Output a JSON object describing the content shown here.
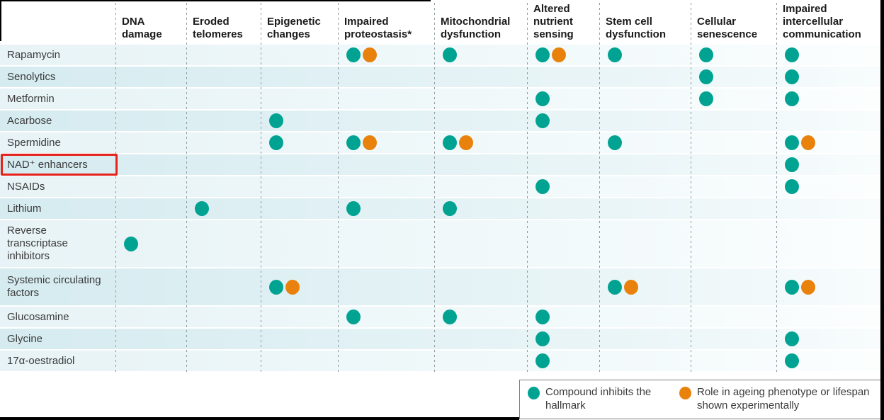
{
  "colors": {
    "teal": "#00A392",
    "orange": "#E8820C",
    "highlight_red": "#E5231B",
    "row_tint_light": "#E7F3F6",
    "row_tint_dark": "#D5EBF0"
  },
  "chart_data": {
    "type": "table",
    "title": "",
    "columns": [
      "DNA damage",
      "Eroded telomeres",
      "Epigenetic changes",
      "Impaired proteostasis*",
      "Mitochondrial dysfunction",
      "Altered nutrient sensing",
      "Stem cell dysfunction",
      "Cellular senescence",
      "Impaired intercellular communication"
    ],
    "rows": [
      {
        "label": "Rapamycin",
        "highlighted": false,
        "cells": [
          [],
          [],
          [],
          [
            "inhibits",
            "experimental"
          ],
          [
            "inhibits"
          ],
          [
            "inhibits",
            "experimental"
          ],
          [
            "inhibits"
          ],
          [
            "inhibits"
          ],
          [
            "inhibits"
          ]
        ]
      },
      {
        "label": "Senolytics",
        "highlighted": false,
        "cells": [
          [],
          [],
          [],
          [],
          [],
          [],
          [],
          [
            "inhibits"
          ],
          [
            "inhibits"
          ]
        ]
      },
      {
        "label": "Metformin",
        "highlighted": false,
        "cells": [
          [],
          [],
          [],
          [],
          [],
          [
            "inhibits"
          ],
          [],
          [
            "inhibits"
          ],
          [
            "inhibits"
          ]
        ]
      },
      {
        "label": "Acarbose",
        "highlighted": false,
        "cells": [
          [],
          [],
          [
            "inhibits"
          ],
          [],
          [],
          [
            "inhibits"
          ],
          [],
          [],
          []
        ]
      },
      {
        "label": "Spermidine",
        "highlighted": false,
        "cells": [
          [],
          [],
          [
            "inhibits"
          ],
          [
            "inhibits",
            "experimental"
          ],
          [
            "inhibits",
            "experimental"
          ],
          [],
          [
            "inhibits"
          ],
          [],
          [
            "inhibits",
            "experimental"
          ]
        ]
      },
      {
        "label": "NAD⁺ enhancers",
        "highlighted": true,
        "cells": [
          [],
          [],
          [],
          [],
          [],
          [],
          [],
          [],
          [
            "inhibits"
          ]
        ]
      },
      {
        "label": "NSAIDs",
        "highlighted": false,
        "cells": [
          [],
          [],
          [],
          [],
          [],
          [
            "inhibits"
          ],
          [],
          [],
          [
            "inhibits"
          ]
        ]
      },
      {
        "label": "Lithium",
        "highlighted": false,
        "cells": [
          [],
          [
            "inhibits"
          ],
          [],
          [
            "inhibits"
          ],
          [
            "inhibits"
          ],
          [],
          [],
          [],
          []
        ]
      },
      {
        "label": "Reverse transcriptase inhibitors",
        "highlighted": false,
        "cells": [
          [
            "inhibits"
          ],
          [],
          [],
          [],
          [],
          [],
          [],
          [],
          []
        ]
      },
      {
        "label": "Systemic circulating factors",
        "highlighted": false,
        "cells": [
          [],
          [],
          [
            "inhibits",
            "experimental"
          ],
          [],
          [],
          [],
          [
            "inhibits",
            "experimental"
          ],
          [],
          [
            "inhibits",
            "experimental"
          ]
        ]
      },
      {
        "label": "Glucosamine",
        "highlighted": false,
        "cells": [
          [],
          [],
          [],
          [
            "inhibits"
          ],
          [
            "inhibits"
          ],
          [
            "inhibits"
          ],
          [],
          [],
          []
        ]
      },
      {
        "label": "Glycine",
        "highlighted": false,
        "cells": [
          [],
          [],
          [],
          [],
          [],
          [
            "inhibits"
          ],
          [],
          [],
          [
            "inhibits"
          ]
        ]
      },
      {
        "label": "17α-oestradiol",
        "highlighted": false,
        "cells": [
          [],
          [],
          [],
          [],
          [],
          [
            "inhibits"
          ],
          [],
          [],
          [
            "inhibits"
          ]
        ]
      }
    ],
    "legend": [
      {
        "key": "inhibits",
        "label": "Compound inhibits the hallmark"
      },
      {
        "key": "experimental",
        "label": "Role in ageing phenotype or lifespan shown experimentally"
      }
    ],
    "annotation": {
      "highlighted_row": "NAD⁺ enhancers"
    }
  }
}
